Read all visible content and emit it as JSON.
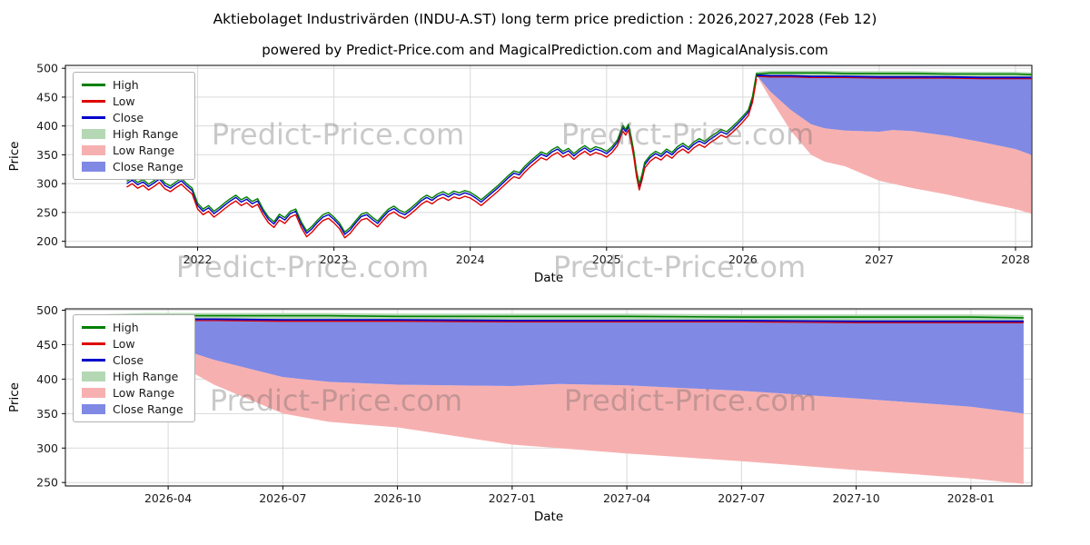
{
  "title": "Aktiebolaget Industrivärden (INDU-A.ST) long term price prediction : 2026,2027,2028 (Feb 12)",
  "subtitle": "powered by Predict-Price.com and MagicalPrediction.com and MagicalAnalysis.com",
  "watermark": "Predict-Price.com",
  "colors": {
    "high": "#007f00",
    "low": "#dd0000",
    "close": "#0000cc",
    "high_range": "#b4d8b4",
    "low_range": "#f7b0b0",
    "close_range": "#8089e4",
    "grid": "#d9d9d9",
    "axis": "#000000",
    "tick_text": "#1a1a1a"
  },
  "legend": [
    {
      "label": "High",
      "type": "line",
      "color_key": "high"
    },
    {
      "label": "Low",
      "type": "line",
      "color_key": "low"
    },
    {
      "label": "Close",
      "type": "line",
      "color_key": "close"
    },
    {
      "label": "High Range",
      "type": "patch",
      "color_key": "high_range"
    },
    {
      "label": "Low Range",
      "type": "patch",
      "color_key": "low_range"
    },
    {
      "label": "Close Range",
      "type": "patch",
      "color_key": "close_range"
    }
  ],
  "chart_data": [
    {
      "type": "line",
      "name": "history-and-forecast-chart",
      "xlabel": "Date",
      "ylabel": "Price",
      "xlim": [
        2021.03,
        2028.12
      ],
      "ylim": [
        190,
        505
      ],
      "xticks": {
        "values": [
          2022,
          2023,
          2024,
          2025,
          2026,
          2027,
          2028
        ],
        "labels": [
          "2022",
          "2023",
          "2024",
          "2025",
          "2026",
          "2027",
          "2028"
        ]
      },
      "yticks": [
        200,
        250,
        300,
        350,
        400,
        450,
        500
      ],
      "grid": true,
      "legend_position": "upper left",
      "history": {
        "high_offset": 4,
        "low_offset": -6,
        "x": [
          2021.48,
          2021.52,
          2021.56,
          2021.6,
          2021.64,
          2021.68,
          2021.72,
          2021.76,
          2021.8,
          2021.84,
          2021.88,
          2021.92,
          2021.96,
          2022.0,
          2022.04,
          2022.08,
          2022.12,
          2022.16,
          2022.2,
          2022.24,
          2022.28,
          2022.32,
          2022.36,
          2022.4,
          2022.44,
          2022.48,
          2022.52,
          2022.56,
          2022.6,
          2022.64,
          2022.68,
          2022.72,
          2022.76,
          2022.8,
          2022.84,
          2022.88,
          2022.92,
          2022.96,
          2023.0,
          2023.04,
          2023.08,
          2023.12,
          2023.16,
          2023.2,
          2023.24,
          2023.28,
          2023.32,
          2023.36,
          2023.4,
          2023.44,
          2023.48,
          2023.52,
          2023.56,
          2023.6,
          2023.64,
          2023.68,
          2023.72,
          2023.76,
          2023.8,
          2023.84,
          2023.88,
          2023.92,
          2023.96,
          2024.0,
          2024.04,
          2024.08,
          2024.12,
          2024.16,
          2024.2,
          2024.24,
          2024.28,
          2024.32,
          2024.36,
          2024.4,
          2024.44,
          2024.48,
          2024.52,
          2024.56,
          2024.6,
          2024.64,
          2024.68,
          2024.72,
          2024.76,
          2024.8,
          2024.84,
          2024.88,
          2024.92,
          2024.96,
          2025.0,
          2025.04,
          2025.08,
          2025.1,
          2025.12,
          2025.14,
          2025.16,
          2025.18,
          2025.2,
          2025.22,
          2025.24,
          2025.26,
          2025.28,
          2025.32,
          2025.36,
          2025.4,
          2025.44,
          2025.48,
          2025.52,
          2025.56,
          2025.6,
          2025.64,
          2025.68,
          2025.72,
          2025.76,
          2025.8,
          2025.84,
          2025.88,
          2025.92,
          2025.96,
          2026.0,
          2026.04,
          2026.07,
          2026.1
        ],
        "close": [
          300,
          306,
          298,
          303,
          295,
          301,
          308,
          297,
          292,
          299,
          305,
          296,
          288,
          262,
          252,
          258,
          248,
          255,
          263,
          270,
          276,
          268,
          273,
          265,
          270,
          252,
          238,
          230,
          243,
          237,
          248,
          252,
          230,
          214,
          222,
          233,
          242,
          246,
          238,
          228,
          212,
          220,
          232,
          243,
          246,
          238,
          231,
          242,
          252,
          257,
          250,
          246,
          253,
          261,
          270,
          276,
          271,
          278,
          282,
          277,
          283,
          280,
          284,
          281,
          275,
          268,
          276,
          284,
          292,
          301,
          310,
          318,
          315,
          326,
          335,
          343,
          351,
          347,
          355,
          360,
          352,
          357,
          348,
          356,
          362,
          355,
          360,
          357,
          352,
          360,
          372,
          385,
          397,
          390,
          399,
          378,
          352,
          318,
          295,
          312,
          333,
          345,
          352,
          347,
          356,
          350,
          360,
          366,
          359,
          368,
          374,
          369,
          377,
          383,
          390,
          386,
          394,
          403,
          413,
          424,
          447,
          488
        ]
      },
      "forecast": {
        "x": [
          2026.1,
          2026.2,
          2026.35,
          2026.5,
          2026.6,
          2026.75,
          2027.0,
          2027.1,
          2027.25,
          2027.5,
          2027.75,
          2028.0,
          2028.115
        ],
        "high": [
          490,
          492,
          492,
          492,
          492,
          491,
          491,
          491,
          491,
          490,
          490,
          490,
          489
        ],
        "close": [
          488,
          487,
          487,
          486,
          486,
          486,
          485,
          485,
          485,
          485,
          484,
          484,
          484
        ],
        "close_lower": [
          488,
          460,
          428,
          403,
          396,
          392,
          390,
          393,
          391,
          383,
          372,
          360,
          350
        ],
        "low_lower": [
          488,
          448,
          392,
          350,
          338,
          330,
          305,
          300,
          292,
          281,
          268,
          256,
          248
        ]
      }
    },
    {
      "type": "area",
      "name": "forecast-detail-chart",
      "xlabel": "Date",
      "ylabel": "Price",
      "xlim": [
        2026.026,
        2028.133
      ],
      "ylim": [
        245,
        502
      ],
      "xticks": {
        "values": [
          2026.25,
          2026.5,
          2026.75,
          2027.0,
          2027.25,
          2027.5,
          2027.75,
          2028.0
        ],
        "labels": [
          "2026-04",
          "2026-07",
          "2026-10",
          "2027-01",
          "2027-04",
          "2027-07",
          "2027-10",
          "2028-01"
        ]
      },
      "yticks": [
        250,
        300,
        350,
        400,
        450,
        500
      ],
      "grid": true,
      "legend_position": "upper left",
      "forecast": {
        "x": [
          2026.1,
          2026.2,
          2026.35,
          2026.5,
          2026.6,
          2026.75,
          2027.0,
          2027.1,
          2027.25,
          2027.5,
          2027.75,
          2028.0,
          2028.115
        ],
        "high": [
          490,
          492,
          492,
          492,
          492,
          491,
          491,
          491,
          491,
          490,
          490,
          490,
          489
        ],
        "close": [
          488,
          487,
          487,
          486,
          486,
          486,
          485,
          485,
          485,
          485,
          484,
          484,
          484
        ],
        "close_lower": [
          488,
          460,
          428,
          403,
          396,
          392,
          390,
          393,
          391,
          383,
          372,
          360,
          350
        ],
        "low_lower": [
          488,
          448,
          392,
          350,
          338,
          330,
          305,
          300,
          292,
          281,
          268,
          256,
          248
        ]
      }
    }
  ]
}
